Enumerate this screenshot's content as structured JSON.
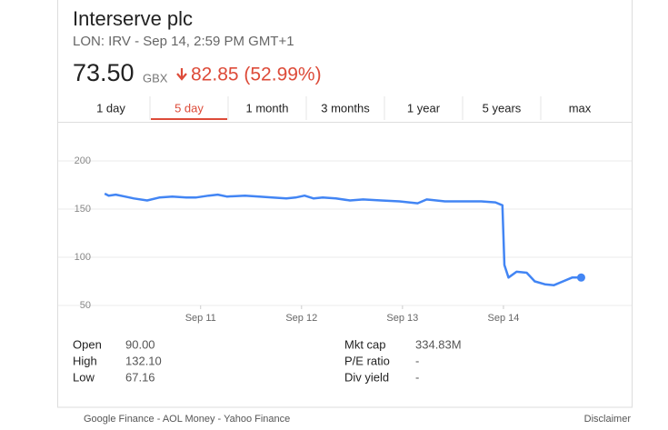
{
  "header": {
    "title": "Interserve plc",
    "subtitle": "LON: IRV - Sep 14, 2:59 PM GMT+1",
    "price": "73.50",
    "currency": "GBX",
    "change": "82.85 (52.99%)"
  },
  "tabs": [
    "1 day",
    "5 day",
    "1 month",
    "3 months",
    "1 year",
    "5 years",
    "max"
  ],
  "chart_data": {
    "type": "line",
    "color": "#4285f4",
    "grid": true,
    "x": [
      10.05,
      10.09,
      10.16,
      10.25,
      10.34,
      10.47,
      10.59,
      10.72,
      10.86,
      10.95,
      11.08,
      11.17,
      11.26,
      11.44,
      11.58,
      11.71,
      11.85,
      11.94,
      12.03,
      12.12,
      12.21,
      12.34,
      12.48,
      12.61,
      12.79,
      12.97,
      13.15,
      13.24,
      13.42,
      13.6,
      13.78,
      13.92,
      13.99,
      14.01,
      14.05,
      14.13,
      14.23,
      14.31,
      14.41,
      14.5,
      14.59,
      14.68,
      14.77
    ],
    "values": [
      166,
      164,
      165,
      163,
      161,
      159,
      162,
      163,
      162,
      162,
      164,
      165,
      163,
      164,
      163,
      162,
      161,
      162,
      164,
      161,
      162,
      161,
      159,
      160,
      159,
      158,
      156,
      160,
      158,
      158,
      158,
      157,
      154,
      92,
      79,
      85,
      84,
      75,
      72,
      71,
      75,
      79,
      79
    ],
    "xlim": [
      9.58,
      15.27
    ],
    "xticks": [
      {
        "value": 11,
        "label": "Sep 11"
      },
      {
        "value": 12,
        "label": "Sep 12"
      },
      {
        "value": 13,
        "label": "Sep 13"
      },
      {
        "value": 14,
        "label": "Sep 14"
      }
    ],
    "ylim": [
      50,
      200
    ],
    "yticks": [
      50,
      100,
      150,
      200
    ]
  },
  "stats": [
    [
      "Open",
      "90.00"
    ],
    [
      "High",
      "132.10"
    ],
    [
      "Low",
      "67.16"
    ],
    [
      "Mkt cap",
      "334.83M"
    ],
    [
      "P/E ratio",
      "-"
    ],
    [
      "Div yield",
      "-"
    ]
  ],
  "footer": {
    "sources": "Google Finance - AOL Money - Yahoo Finance",
    "disclaimer": "Disclaimer"
  }
}
